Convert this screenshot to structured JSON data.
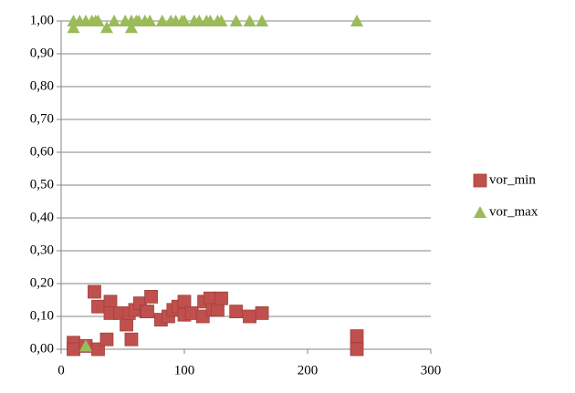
{
  "chart_data": {
    "type": "scatter",
    "xlim": [
      0,
      300
    ],
    "xticks": [
      0,
      100,
      200,
      300
    ],
    "ylim": [
      0,
      1
    ],
    "yticks": [
      {
        "value": 0,
        "label": "0,00"
      },
      {
        "value": 0.1,
        "label": "0,10"
      },
      {
        "value": 0.2,
        "label": "0,20"
      },
      {
        "value": 0.3,
        "label": "0,30"
      },
      {
        "value": 0.4,
        "label": "0,40"
      },
      {
        "value": 0.5,
        "label": "0,50"
      },
      {
        "value": 0.6,
        "label": "0,60"
      },
      {
        "value": 0.7,
        "label": "0,70"
      },
      {
        "value": 0.8,
        "label": "0,80"
      },
      {
        "value": 0.9,
        "label": "0,90"
      },
      {
        "value": 1,
        "label": "1,00"
      }
    ],
    "grid": true,
    "legend": "right",
    "series": [
      {
        "name": "vor_min",
        "color": "#c0504d",
        "marker": "square",
        "x": [
          10,
          10,
          20,
          27,
          30,
          30,
          37,
          40,
          40,
          48,
          53,
          55,
          57,
          60,
          64,
          69,
          73,
          70,
          81,
          87,
          91,
          95,
          100,
          100,
          106,
          115,
          116,
          121,
          123,
          127,
          130,
          142,
          153,
          163,
          240,
          240
        ],
        "values": [
          0.02,
          0,
          0.01,
          0.175,
          0.13,
          0,
          0.03,
          0.145,
          0.11,
          0.11,
          0.075,
          0.11,
          0.03,
          0.12,
          0.14,
          0.115,
          0.16,
          0.115,
          0.09,
          0.1,
          0.12,
          0.13,
          0.145,
          0.105,
          0.11,
          0.1,
          0.145,
          0.155,
          0.12,
          0.12,
          0.155,
          0.115,
          0.1,
          0.11,
          0.04,
          0
        ]
      },
      {
        "name": "vor_max",
        "color": "#9bbb59",
        "marker": "triangle",
        "x": [
          10,
          15,
          20,
          25,
          28,
          30,
          43,
          52,
          57,
          61,
          63,
          68,
          72,
          82,
          89,
          93,
          98,
          100,
          108,
          112,
          118,
          121,
          127,
          130,
          142,
          153,
          163,
          240,
          10,
          37,
          57,
          20
        ],
        "values": [
          1,
          1,
          1,
          1,
          1,
          1,
          1,
          1,
          1,
          1,
          1,
          1,
          1,
          1,
          1,
          1,
          1,
          1,
          1,
          1,
          1,
          1,
          1,
          1,
          1,
          1,
          1,
          1,
          0.98,
          0.98,
          0.98,
          0.01
        ]
      }
    ]
  }
}
